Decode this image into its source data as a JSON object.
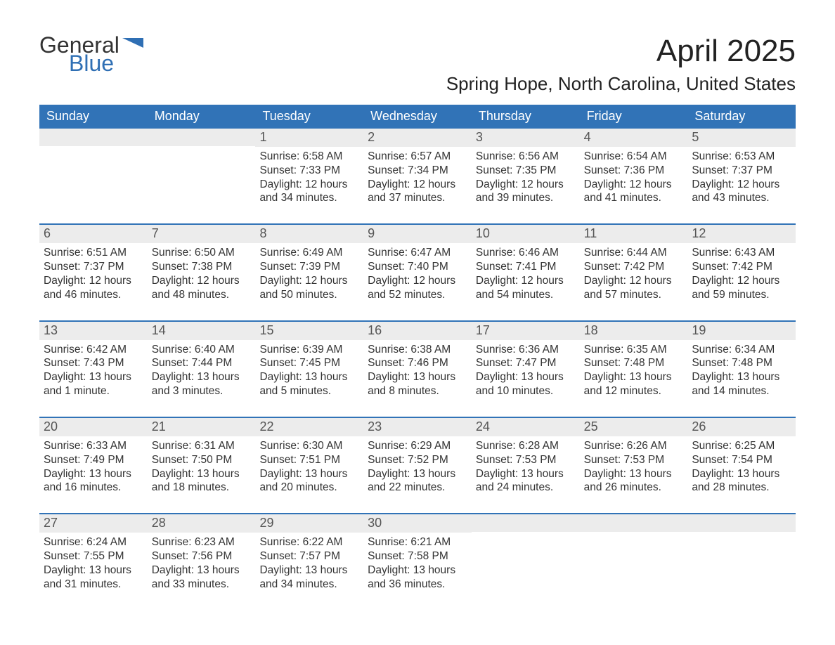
{
  "logo": {
    "line1": "General",
    "line2": "Blue",
    "text_color": "#333333",
    "accent_color": "#2f6fb4"
  },
  "title": "April 2025",
  "location": "Spring Hope, North Carolina, United States",
  "colors": {
    "header_bg": "#3173b7",
    "header_text": "#ffffff",
    "daynum_bg": "#ececec",
    "daynum_text": "#555555",
    "body_text": "#333333",
    "week_divider": "#3173b7",
    "page_bg": "#ffffff"
  },
  "weekdays": [
    "Sunday",
    "Monday",
    "Tuesday",
    "Wednesday",
    "Thursday",
    "Friday",
    "Saturday"
  ],
  "weeks": [
    [
      {
        "n": "",
        "sunrise": "",
        "sunset": "",
        "daylight": ""
      },
      {
        "n": "",
        "sunrise": "",
        "sunset": "",
        "daylight": ""
      },
      {
        "n": "1",
        "sunrise": "Sunrise: 6:58 AM",
        "sunset": "Sunset: 7:33 PM",
        "daylight": "Daylight: 12 hours and 34 minutes."
      },
      {
        "n": "2",
        "sunrise": "Sunrise: 6:57 AM",
        "sunset": "Sunset: 7:34 PM",
        "daylight": "Daylight: 12 hours and 37 minutes."
      },
      {
        "n": "3",
        "sunrise": "Sunrise: 6:56 AM",
        "sunset": "Sunset: 7:35 PM",
        "daylight": "Daylight: 12 hours and 39 minutes."
      },
      {
        "n": "4",
        "sunrise": "Sunrise: 6:54 AM",
        "sunset": "Sunset: 7:36 PM",
        "daylight": "Daylight: 12 hours and 41 minutes."
      },
      {
        "n": "5",
        "sunrise": "Sunrise: 6:53 AM",
        "sunset": "Sunset: 7:37 PM",
        "daylight": "Daylight: 12 hours and 43 minutes."
      }
    ],
    [
      {
        "n": "6",
        "sunrise": "Sunrise: 6:51 AM",
        "sunset": "Sunset: 7:37 PM",
        "daylight": "Daylight: 12 hours and 46 minutes."
      },
      {
        "n": "7",
        "sunrise": "Sunrise: 6:50 AM",
        "sunset": "Sunset: 7:38 PM",
        "daylight": "Daylight: 12 hours and 48 minutes."
      },
      {
        "n": "8",
        "sunrise": "Sunrise: 6:49 AM",
        "sunset": "Sunset: 7:39 PM",
        "daylight": "Daylight: 12 hours and 50 minutes."
      },
      {
        "n": "9",
        "sunrise": "Sunrise: 6:47 AM",
        "sunset": "Sunset: 7:40 PM",
        "daylight": "Daylight: 12 hours and 52 minutes."
      },
      {
        "n": "10",
        "sunrise": "Sunrise: 6:46 AM",
        "sunset": "Sunset: 7:41 PM",
        "daylight": "Daylight: 12 hours and 54 minutes."
      },
      {
        "n": "11",
        "sunrise": "Sunrise: 6:44 AM",
        "sunset": "Sunset: 7:42 PM",
        "daylight": "Daylight: 12 hours and 57 minutes."
      },
      {
        "n": "12",
        "sunrise": "Sunrise: 6:43 AM",
        "sunset": "Sunset: 7:42 PM",
        "daylight": "Daylight: 12 hours and 59 minutes."
      }
    ],
    [
      {
        "n": "13",
        "sunrise": "Sunrise: 6:42 AM",
        "sunset": "Sunset: 7:43 PM",
        "daylight": "Daylight: 13 hours and 1 minute."
      },
      {
        "n": "14",
        "sunrise": "Sunrise: 6:40 AM",
        "sunset": "Sunset: 7:44 PM",
        "daylight": "Daylight: 13 hours and 3 minutes."
      },
      {
        "n": "15",
        "sunrise": "Sunrise: 6:39 AM",
        "sunset": "Sunset: 7:45 PM",
        "daylight": "Daylight: 13 hours and 5 minutes."
      },
      {
        "n": "16",
        "sunrise": "Sunrise: 6:38 AM",
        "sunset": "Sunset: 7:46 PM",
        "daylight": "Daylight: 13 hours and 8 minutes."
      },
      {
        "n": "17",
        "sunrise": "Sunrise: 6:36 AM",
        "sunset": "Sunset: 7:47 PM",
        "daylight": "Daylight: 13 hours and 10 minutes."
      },
      {
        "n": "18",
        "sunrise": "Sunrise: 6:35 AM",
        "sunset": "Sunset: 7:48 PM",
        "daylight": "Daylight: 13 hours and 12 minutes."
      },
      {
        "n": "19",
        "sunrise": "Sunrise: 6:34 AM",
        "sunset": "Sunset: 7:48 PM",
        "daylight": "Daylight: 13 hours and 14 minutes."
      }
    ],
    [
      {
        "n": "20",
        "sunrise": "Sunrise: 6:33 AM",
        "sunset": "Sunset: 7:49 PM",
        "daylight": "Daylight: 13 hours and 16 minutes."
      },
      {
        "n": "21",
        "sunrise": "Sunrise: 6:31 AM",
        "sunset": "Sunset: 7:50 PM",
        "daylight": "Daylight: 13 hours and 18 minutes."
      },
      {
        "n": "22",
        "sunrise": "Sunrise: 6:30 AM",
        "sunset": "Sunset: 7:51 PM",
        "daylight": "Daylight: 13 hours and 20 minutes."
      },
      {
        "n": "23",
        "sunrise": "Sunrise: 6:29 AM",
        "sunset": "Sunset: 7:52 PM",
        "daylight": "Daylight: 13 hours and 22 minutes."
      },
      {
        "n": "24",
        "sunrise": "Sunrise: 6:28 AM",
        "sunset": "Sunset: 7:53 PM",
        "daylight": "Daylight: 13 hours and 24 minutes."
      },
      {
        "n": "25",
        "sunrise": "Sunrise: 6:26 AM",
        "sunset": "Sunset: 7:53 PM",
        "daylight": "Daylight: 13 hours and 26 minutes."
      },
      {
        "n": "26",
        "sunrise": "Sunrise: 6:25 AM",
        "sunset": "Sunset: 7:54 PM",
        "daylight": "Daylight: 13 hours and 28 minutes."
      }
    ],
    [
      {
        "n": "27",
        "sunrise": "Sunrise: 6:24 AM",
        "sunset": "Sunset: 7:55 PM",
        "daylight": "Daylight: 13 hours and 31 minutes."
      },
      {
        "n": "28",
        "sunrise": "Sunrise: 6:23 AM",
        "sunset": "Sunset: 7:56 PM",
        "daylight": "Daylight: 13 hours and 33 minutes."
      },
      {
        "n": "29",
        "sunrise": "Sunrise: 6:22 AM",
        "sunset": "Sunset: 7:57 PM",
        "daylight": "Daylight: 13 hours and 34 minutes."
      },
      {
        "n": "30",
        "sunrise": "Sunrise: 6:21 AM",
        "sunset": "Sunset: 7:58 PM",
        "daylight": "Daylight: 13 hours and 36 minutes."
      },
      {
        "n": "",
        "sunrise": "",
        "sunset": "",
        "daylight": ""
      },
      {
        "n": "",
        "sunrise": "",
        "sunset": "",
        "daylight": ""
      },
      {
        "n": "",
        "sunrise": "",
        "sunset": "",
        "daylight": ""
      }
    ]
  ]
}
